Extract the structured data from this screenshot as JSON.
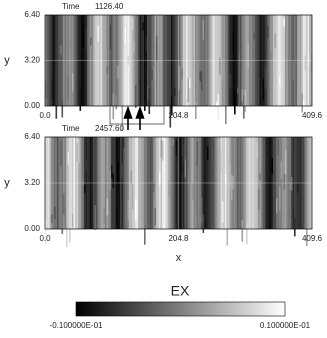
{
  "panels": [
    {
      "time_label": "Time",
      "time": "1126.40",
      "y_label": "y",
      "yticks": [
        "6.40",
        "3.20",
        "0.00"
      ],
      "xticks": [
        "0.0",
        "204.8",
        "409.6"
      ]
    },
    {
      "time_label": "Time",
      "time": "2457.60",
      "y_label": "y",
      "yticks": [
        "6.40",
        "3.20",
        "0.00"
      ],
      "xticks": [
        "0.0",
        "204.8",
        "409.6"
      ],
      "x_label": "x"
    }
  ],
  "colorbar": {
    "title": "EX",
    "min_label": "-0.100000E-01",
    "max_label": "0.100000E-01"
  }
}
